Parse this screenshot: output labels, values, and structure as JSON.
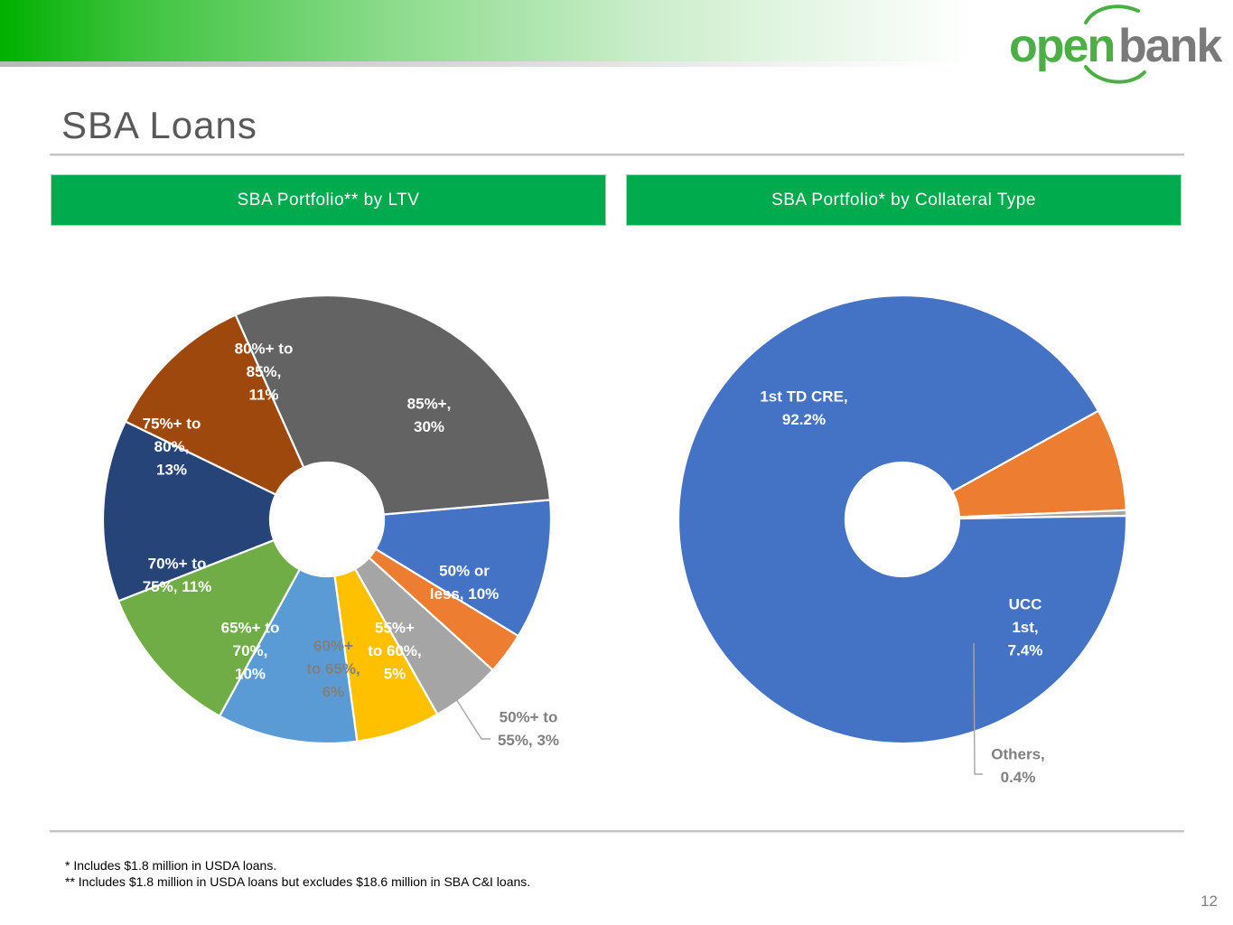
{
  "brand": {
    "logo_text_part1": "open",
    "logo_text_part2": "bank",
    "logo_green": "#4caf45",
    "logo_gray": "#7a7a7a"
  },
  "page_title": "SBA Loans",
  "page_number": "12",
  "colors": {
    "header_green": "#00ab4e",
    "slice_border": "#ffffff"
  },
  "footnotes": [
    "* Includes $1.8 million in USDA loans.",
    "** Includes $1.8 million in USDA loans but excludes $18.6 million in SBA C&I loans."
  ],
  "chart_data": [
    {
      "type": "pie",
      "title": "SBA Portfolio** by LTV",
      "donut": true,
      "start_angle_deg": 85,
      "direction": "clockwise",
      "slices": [
        {
          "name": "50% or less",
          "value": 10,
          "label": "50% or\nless, 10%",
          "color": "#4472c4",
          "label_color": "#ffffff",
          "callout": false
        },
        {
          "name": "50%+ to 55%",
          "value": 3,
          "label": "50%+ to\n55%, 3%",
          "color": "#ed7d31",
          "label_color": "#808080",
          "callout": true
        },
        {
          "name": "55%+ to 60%",
          "value": 5,
          "label": "55%+\nto 60%,\n5%",
          "color": "#a5a5a5",
          "label_color": "#ffffff",
          "callout": false
        },
        {
          "name": "60%+ to 65%",
          "value": 6,
          "label": "60%+\nto 65%,\n6%",
          "color": "#ffc000",
          "label_color": "#808080",
          "callout": false
        },
        {
          "name": "65%+ to 70%",
          "value": 10,
          "label": "65%+ to\n70%,\n10%",
          "color": "#5b9bd5",
          "label_color": "#ffffff",
          "callout": false
        },
        {
          "name": "70%+ to 75%",
          "value": 11,
          "label": "70%+ to\n75%, 11%",
          "color": "#70ad47",
          "label_color": "#ffffff",
          "callout": false
        },
        {
          "name": "75%+ to 80%",
          "value": 13,
          "label": "75%+ to\n80%,\n13%",
          "color": "#264478",
          "label_color": "#ffffff",
          "callout": false
        },
        {
          "name": "80%+ to 85%",
          "value": 11,
          "label": "80%+ to\n85%,\n11%",
          "color": "#9e480e",
          "label_color": "#ffffff",
          "callout": false
        },
        {
          "name": "85%+",
          "value": 30,
          "label": "85%+,\n30%",
          "color": "#636363",
          "label_color": "#ffffff",
          "callout": false
        }
      ]
    },
    {
      "type": "pie",
      "title": "SBA Portfolio* by Collateral Type",
      "donut": true,
      "start_angle_deg": 61,
      "direction": "clockwise",
      "slices": [
        {
          "name": "UCC 1st",
          "value": 7.4,
          "label": "UCC\n1st,\n7.4%",
          "color": "#ed7d31",
          "label_color": "#ffffff",
          "callout": false
        },
        {
          "name": "Others",
          "value": 0.4,
          "label": "Others,\n0.4%",
          "color": "#a5a5a5",
          "label_color": "#808080",
          "callout": true
        },
        {
          "name": "1st TD CRE",
          "value": 92.2,
          "label": "1st TD CRE,\n92.2%",
          "color": "#4472c4",
          "label_color": "#ffffff",
          "callout": false
        }
      ]
    }
  ]
}
